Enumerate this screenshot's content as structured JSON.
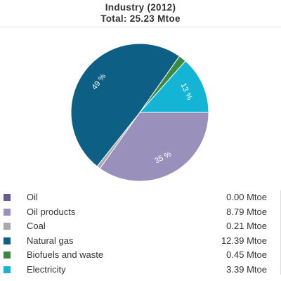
{
  "header": {
    "title": "Industry (2012)",
    "subtitle": "Total: 25.23 Mtoe"
  },
  "chart_data": {
    "type": "pie",
    "title": "Industry (2012)",
    "subtitle": "Total: 25.23 Mtoe",
    "unit": "Mtoe",
    "slices": [
      {
        "label": "Oil",
        "value": 0.0,
        "value_text": "0.00 Mtoe",
        "color": "#6b5b95",
        "pct_label": ""
      },
      {
        "label": "Oil products",
        "value": 8.79,
        "value_text": "8.79 Mtoe",
        "color": "#9990bb",
        "pct_label": "35 %"
      },
      {
        "label": "Coal",
        "value": 0.21,
        "value_text": "0.21 Mtoe",
        "color": "#a9a9a9",
        "pct_label": ""
      },
      {
        "label": "Natural gas",
        "value": 12.39,
        "value_text": "12.39 Mtoe",
        "color": "#0e5f86",
        "pct_label": "49 %"
      },
      {
        "label": "Biofuels and waste",
        "value": 0.45,
        "value_text": "0.45 Mtoe",
        "color": "#3a8a43",
        "pct_label": ""
      },
      {
        "label": "Electricity",
        "value": 3.39,
        "value_text": "3.39 Mtoe",
        "color": "#13b4d4",
        "pct_label": "13 %"
      }
    ],
    "legend_position": "bottom"
  }
}
